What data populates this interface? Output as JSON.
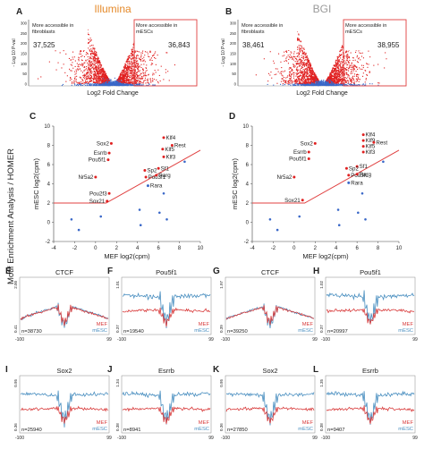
{
  "figure": {
    "side_label": "Motif Enrichment Analysis / HOMER",
    "colors": {
      "red": "#e02020",
      "blue": "#3a68c8",
      "illumina_title": "#e58a2a",
      "bgi_title": "#9a9a9a",
      "threshold": "#e04040",
      "mef_line": "#d83a3a",
      "mesc_line": "#4a8fc0"
    }
  },
  "volcano_panels": [
    {
      "letter": "A",
      "title": "Illumina",
      "left_text": [
        "More accessible in",
        "fibroblasts"
      ],
      "right_text": [
        "More accessible in",
        "mESCs"
      ],
      "left_count": "37,525",
      "right_count": "36,843",
      "ylabel": "- Log 10 P-val",
      "xlabel": "Log2  Fold Change",
      "yticks": [
        "300",
        "250",
        "200",
        "150",
        "100",
        "50",
        "0"
      ]
    },
    {
      "letter": "B",
      "title": "BGI",
      "left_text": [
        "More accessible in",
        "fibroblasts"
      ],
      "right_text": [
        "More accessible in",
        "mESCs"
      ],
      "left_count": "38,461",
      "right_count": "38,955",
      "ylabel": "- Log 10 P-val",
      "xlabel": "Log2  Fold Change",
      "yticks": [
        "300",
        "250",
        "200",
        "150",
        "100",
        "50",
        "0"
      ]
    }
  ],
  "chart_data": [
    {
      "type": "scatter",
      "panel": "C",
      "xlabel": "MEF log2(cpm)",
      "ylabel": "mESC log2(cpm)",
      "xlim": [
        -4,
        10
      ],
      "ylim": [
        -2,
        10
      ],
      "xticks": [
        -4,
        -2,
        0,
        2,
        4,
        6,
        8,
        10
      ],
      "yticks": [
        -2,
        0,
        2,
        4,
        6,
        8,
        10
      ],
      "threshold_line": [
        [
          -4,
          2
        ],
        [
          1,
          2
        ],
        [
          10,
          7.5
        ]
      ],
      "labeled_points": [
        {
          "label": "Sox2",
          "x": 1.5,
          "y": 8.2
        },
        {
          "label": "Esrrb",
          "x": 1.3,
          "y": 7.2
        },
        {
          "label": "Pou5f1",
          "x": 1.2,
          "y": 6.5
        },
        {
          "label": "Nr5a2",
          "x": 0.0,
          "y": 4.7
        },
        {
          "label": "Pou2f3",
          "x": 1.3,
          "y": 3.0
        },
        {
          "label": "Sox21",
          "x": 1.1,
          "y": 2.2
        },
        {
          "label": "Klf4",
          "x": 6.5,
          "y": 8.8
        },
        {
          "label": "Klf5",
          "x": 6.4,
          "y": 7.6
        },
        {
          "label": "Klf3",
          "x": 6.5,
          "y": 6.8
        },
        {
          "label": "Rest",
          "x": 7.3,
          "y": 8.0
        },
        {
          "label": "Sf1",
          "x": 6.0,
          "y": 5.6
        },
        {
          "label": "Sp2",
          "x": 4.7,
          "y": 5.4
        },
        {
          "label": "Pou3f1",
          "x": 4.8,
          "y": 4.7
        },
        {
          "label": "Rarg",
          "x": 5.8,
          "y": 4.9
        },
        {
          "label": "Rara",
          "x": 5.0,
          "y": 3.8
        }
      ],
      "other_points": [
        [
          8.5,
          6.3
        ],
        [
          6.5,
          3.0
        ],
        [
          4.2,
          1.3
        ],
        [
          6.1,
          1.0
        ],
        [
          0.5,
          0.6
        ],
        [
          -1.6,
          -0.8
        ],
        [
          -2.3,
          0.3
        ],
        [
          6.8,
          0.3
        ],
        [
          4.3,
          -0.3
        ]
      ]
    },
    {
      "type": "scatter",
      "panel": "D",
      "xlabel": "MEF log2(cpm)",
      "ylabel": "mESC log2(cpm)",
      "xlim": [
        -4,
        10
      ],
      "ylim": [
        -2,
        10
      ],
      "xticks": [
        -4,
        -2,
        0,
        2,
        4,
        6,
        8,
        10
      ],
      "yticks": [
        -2,
        0,
        2,
        4,
        6,
        8,
        10
      ],
      "threshold_line": [
        [
          -4,
          2
        ],
        [
          1,
          2
        ],
        [
          10,
          7.5
        ]
      ],
      "labeled_points": [
        {
          "label": "Sox2",
          "x": 2.0,
          "y": 8.2
        },
        {
          "label": "Esrrb",
          "x": 1.4,
          "y": 7.3
        },
        {
          "label": "Pou5f1",
          "x": 1.4,
          "y": 6.6
        },
        {
          "label": "Nr5a2",
          "x": 0.0,
          "y": 4.7
        },
        {
          "label": "Sox21",
          "x": 0.8,
          "y": 2.3
        },
        {
          "label": "Klf4",
          "x": 6.6,
          "y": 9.1
        },
        {
          "label": "Klf9",
          "x": 6.6,
          "y": 8.5
        },
        {
          "label": "Klf5",
          "x": 6.6,
          "y": 7.9
        },
        {
          "label": "Klf3",
          "x": 6.6,
          "y": 7.3
        },
        {
          "label": "Rest",
          "x": 7.6,
          "y": 8.3
        },
        {
          "label": "Sf1",
          "x": 6.0,
          "y": 5.8
        },
        {
          "label": "Sp2",
          "x": 5.0,
          "y": 5.6
        },
        {
          "label": "Pou3f1",
          "x": 5.2,
          "y": 4.9
        },
        {
          "label": "Rarg",
          "x": 6.0,
          "y": 5.0
        },
        {
          "label": "Rara",
          "x": 5.2,
          "y": 4.1
        }
      ],
      "other_points": [
        [
          8.5,
          6.3
        ],
        [
          6.5,
          3.0
        ],
        [
          4.2,
          1.3
        ],
        [
          6.1,
          1.0
        ],
        [
          0.5,
          0.6
        ],
        [
          -1.6,
          -0.8
        ],
        [
          -2.3,
          0.3
        ],
        [
          6.8,
          0.3
        ],
        [
          4.3,
          -0.3
        ]
      ]
    }
  ],
  "footprint_panels": [
    {
      "letter": "E",
      "title": "CTCF",
      "n": "n=38730",
      "ytop": "2.00",
      "ybottom": "0.41",
      "xl": "-100",
      "xr": "99",
      "l1": "MEF",
      "l2": "mESC",
      "style": "ctcf"
    },
    {
      "letter": "F",
      "title": "Pou5f1",
      "n": "n=19540",
      "ytop": "1.01",
      "ybottom": "0.37",
      "xl": "-100",
      "xr": "99",
      "l1": "MEF",
      "l2": "mESC",
      "style": "split"
    },
    {
      "letter": "G",
      "title": "CTCF",
      "n": "n=39250",
      "ytop": "1.97",
      "ybottom": "0.39",
      "xl": "-100",
      "xr": "99",
      "l1": "MEF",
      "l2": "mESC",
      "style": "ctcf"
    },
    {
      "letter": "H",
      "title": "Pou5f1",
      "n": "n=20997",
      "ytop": "1.02",
      "ybottom": "0.37",
      "xl": "-100",
      "xr": "99",
      "l1": "MEF",
      "l2": "mESC",
      "style": "split"
    },
    {
      "letter": "I",
      "title": "Sox2",
      "n": "n=25940",
      "ytop": "0.95",
      "ybottom": "0.36",
      "xl": "-100",
      "xr": "99",
      "l1": "MEF",
      "l2": "mESC",
      "style": "split"
    },
    {
      "letter": "J",
      "title": "Esrrb",
      "n": "n=8941",
      "ytop": "1.34",
      "ybottom": "0.38",
      "xl": "-100",
      "xr": "99",
      "l1": "MEF",
      "l2": "mESC",
      "style": "split"
    },
    {
      "letter": "K",
      "title": "Sox2",
      "n": "n=27850",
      "ytop": "0.95",
      "ybottom": "0.36",
      "xl": "-100",
      "xr": "99",
      "l1": "MEF",
      "l2": "mESC",
      "style": "split"
    },
    {
      "letter": "L",
      "title": "Esrrb",
      "n": "n=9407",
      "ytop": "1.35",
      "ybottom": "0.38",
      "xl": "-100",
      "xr": "99",
      "l1": "MEF",
      "l2": "mESC",
      "style": "split"
    }
  ]
}
